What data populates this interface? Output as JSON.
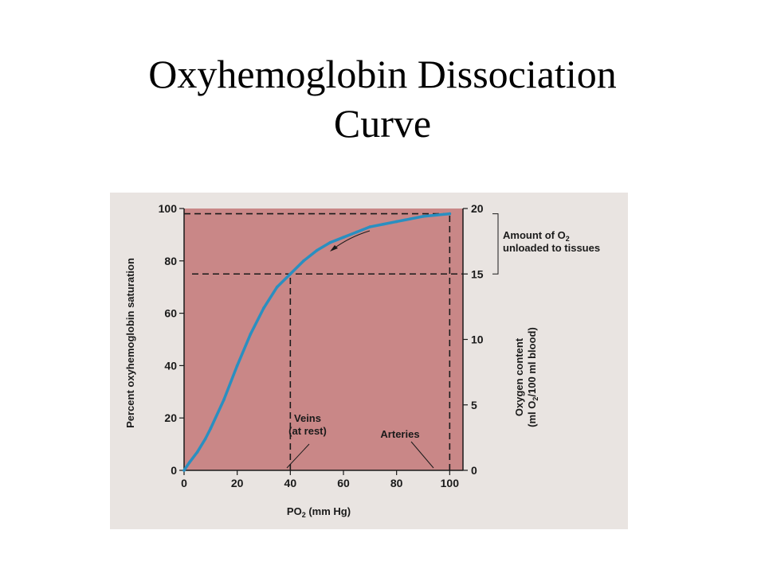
{
  "slide": {
    "title_line1": "Oxyhemoglobin Dissociation",
    "title_line2": "Curve"
  },
  "colors": {
    "panel_background": "#e9e4e1",
    "plot_fill": "#c98787",
    "curve": "#2a8fc0",
    "reference_lines": "#1a1a1a",
    "text": "#1a1a1a"
  },
  "chart_data": {
    "type": "line",
    "title": "",
    "xlabel": "PO",
    "xlabel_sub": "2",
    "xlabel_tail": " (mm Hg)",
    "ylabel": "Percent oxyhemoglobin saturation",
    "y2label_line1_pre": "Oxygen content",
    "y2label_line2_pre": "(ml O",
    "y2label_line2_sub": "2",
    "y2label_line2_tail": "/100 ml blood)",
    "xlim": [
      0,
      105
    ],
    "ylim": [
      0,
      100
    ],
    "y2lim": [
      0,
      20
    ],
    "xticks": [
      0,
      20,
      40,
      60,
      80,
      100
    ],
    "yticks": [
      0,
      20,
      40,
      60,
      80,
      100
    ],
    "y2ticks": [
      0,
      5,
      10,
      15,
      20
    ],
    "grid": false,
    "series": [
      {
        "x": [
          0,
          2,
          5,
          8,
          10,
          15,
          20,
          25,
          30,
          35,
          40,
          45,
          50,
          55,
          60,
          65,
          70,
          75,
          80,
          85,
          90,
          95,
          100
        ],
        "y": [
          0,
          3,
          7,
          12,
          16,
          27,
          40,
          52,
          62,
          70,
          75,
          80,
          84,
          87,
          89,
          91,
          93,
          94,
          95,
          96,
          97,
          97.5,
          98
        ]
      }
    ],
    "reference_lines": [
      {
        "type": "h",
        "y": 98,
        "x_from": 0,
        "x_to": 100
      },
      {
        "type": "h",
        "y": 75,
        "x_from": 3,
        "x_to": 105
      },
      {
        "type": "v",
        "x": 40,
        "y_from": 0,
        "y_to": 75
      },
      {
        "type": "v",
        "x": 100,
        "y_from": 0,
        "y_to": 98
      }
    ],
    "annotations": {
      "veins_line1": "Veins",
      "veins_line2": "(at rest)",
      "veins_x": 40,
      "arteries": "Arteries",
      "arteries_x": 100,
      "bracket_line1_pre": "Amount of O",
      "bracket_line1_sub": "2",
      "bracket_line2": "unloaded to tissues",
      "bracket_y_from": 75,
      "bracket_y_to": 98
    }
  }
}
